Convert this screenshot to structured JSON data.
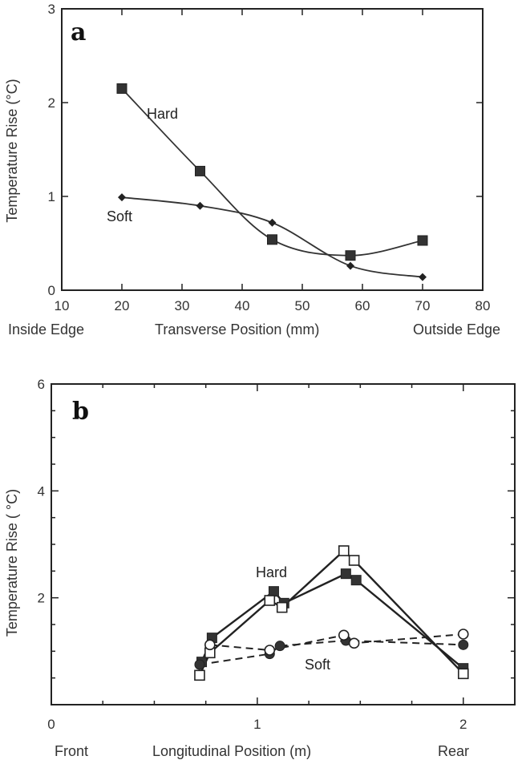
{
  "chart_data": [
    {
      "type": "line",
      "panel_label": "a",
      "xlabel": "Transverse Position (mm)",
      "xlabel_left": "Inside Edge",
      "xlabel_right": "Outside Edge",
      "ylabel": "Temperature Rise (°C)",
      "xlim": [
        10,
        80
      ],
      "ylim": [
        0,
        3
      ],
      "xticks": [
        10,
        20,
        30,
        40,
        50,
        60,
        70,
        80
      ],
      "yticks": [
        0,
        1,
        2,
        3
      ],
      "grid": false,
      "series": [
        {
          "name": "Hard",
          "marker": "filled-square",
          "x": [
            20,
            33,
            45,
            58,
            70
          ],
          "values": [
            2.15,
            1.27,
            0.54,
            0.37,
            0.53
          ]
        },
        {
          "name": "Soft",
          "marker": "filled-diamond",
          "x": [
            20,
            33,
            45,
            58,
            70
          ],
          "values": [
            0.99,
            0.9,
            0.72,
            0.26,
            0.14
          ]
        }
      ]
    },
    {
      "type": "line",
      "panel_label": "b",
      "xlabel": "Longitudinal Position (m)",
      "xlabel_left": "Front",
      "xlabel_right": "Rear",
      "ylabel": "Temperature Rise ( °C)",
      "xlim": [
        0,
        2.25
      ],
      "ylim": [
        0,
        6
      ],
      "xticks": [
        0,
        1,
        2
      ],
      "yticks": [
        2,
        4,
        6
      ],
      "grid": false,
      "series": [
        {
          "name": "Hard",
          "style": "solid",
          "marker": "filled-square",
          "x": [
            0.73,
            0.78,
            1.08,
            1.13,
            1.43,
            1.48,
            2.0
          ],
          "values": [
            0.8,
            1.25,
            2.12,
            1.9,
            2.45,
            2.33,
            0.68
          ]
        },
        {
          "name": "Hard",
          "style": "solid",
          "marker": "open-square",
          "x": [
            0.72,
            0.77,
            1.06,
            1.12,
            1.42,
            1.47,
            2.0
          ],
          "values": [
            0.55,
            0.97,
            1.95,
            1.82,
            2.88,
            2.7,
            0.58
          ]
        },
        {
          "name": "Soft",
          "style": "dashed",
          "marker": "filled-circle",
          "x": [
            0.72,
            1.06,
            1.11,
            1.43,
            2.0
          ],
          "values": [
            0.75,
            0.95,
            1.1,
            1.2,
            1.12
          ]
        },
        {
          "name": "Soft",
          "style": "dashed",
          "marker": "open-circle",
          "x": [
            0.77,
            1.06,
            1.42,
            1.47,
            2.0
          ],
          "values": [
            1.12,
            1.02,
            1.3,
            1.15,
            1.32
          ]
        }
      ]
    }
  ]
}
